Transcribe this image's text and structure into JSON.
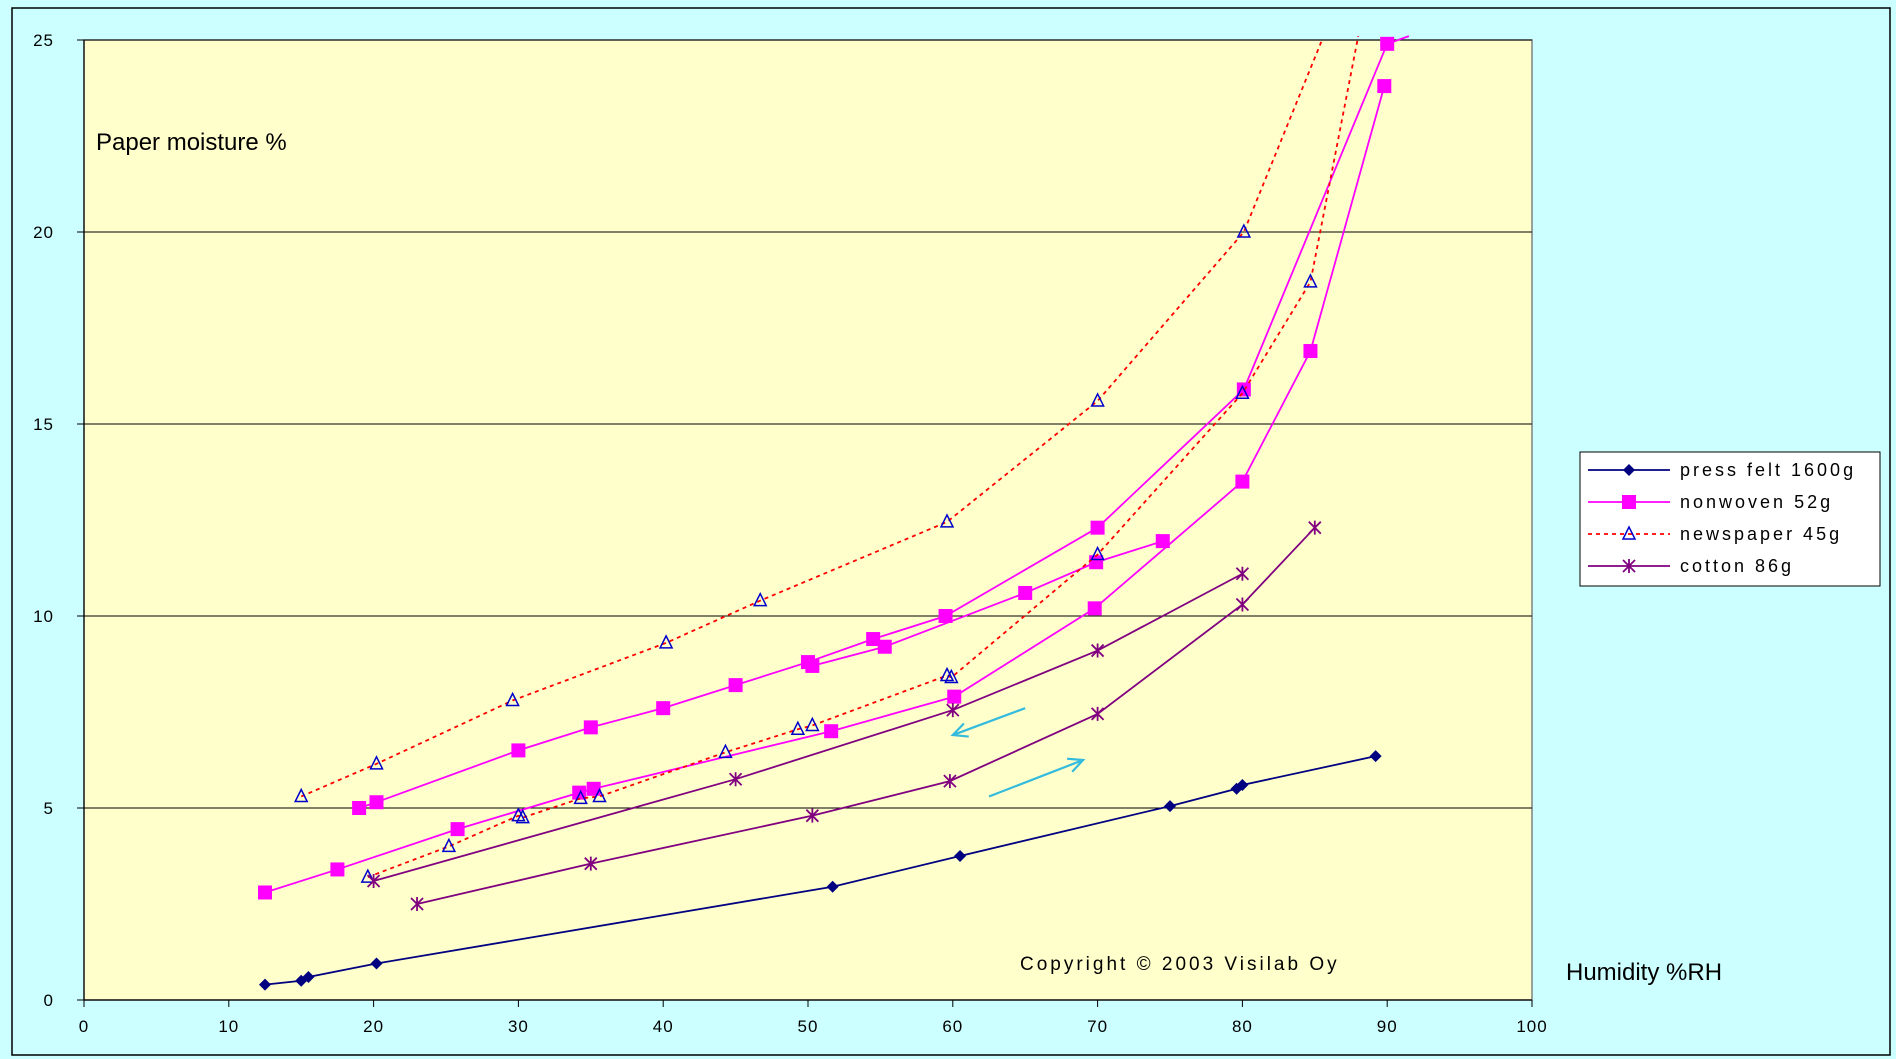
{
  "chart_data": {
    "type": "line",
    "title": "",
    "ylabel": "Paper moisture %",
    "xlabel": "Humidity %RH",
    "xlim": [
      0,
      100
    ],
    "ylim": [
      0,
      25
    ],
    "x_ticks": [
      0,
      10,
      20,
      30,
      40,
      50,
      60,
      70,
      80,
      90,
      100
    ],
    "y_ticks": [
      0,
      5,
      10,
      15,
      20,
      25
    ],
    "grid": "horizontal",
    "legend_position": "right",
    "annotation": "Copyright © 2003 Visilab Oy",
    "colors": {
      "page_background": "#ccffff",
      "plot_background": "#ffffcc",
      "arrow": "#33bbdd"
    },
    "series": [
      {
        "name": "press felt 1600g",
        "color": "#000080",
        "marker": "diamond",
        "dash": "solid",
        "lines": [
          {
            "x": [
              12.5,
              15.0,
              15.5,
              20.2,
              51.7,
              60.5,
              75.0,
              79.6,
              80.0,
              89.2
            ],
            "y": [
              0.4,
              0.5,
              0.6,
              0.95,
              2.95,
              3.75,
              5.05,
              5.5,
              5.6,
              6.35
            ]
          }
        ]
      },
      {
        "name": "nonwoven 52g",
        "color": "#ff00ff",
        "marker": "square",
        "dash": "solid",
        "lines": [
          {
            "x": [
              12.5,
              17.5,
              25.8,
              34.2,
              35.2,
              51.6,
              60.1,
              69.8,
              80.0,
              84.7,
              89.8
            ],
            "y": [
              2.8,
              3.4,
              4.45,
              5.4,
              5.5,
              7.0,
              7.9,
              10.2,
              13.5,
              16.9,
              23.8
            ]
          },
          {
            "x": [
              19.0,
              20.2,
              30.0,
              35.0,
              40.0,
              45.0,
              50.0,
              54.5,
              59.5,
              70.0,
              80.1,
              90.0,
              91.5
            ],
            "y": [
              5.0,
              5.15,
              6.5,
              7.1,
              7.6,
              8.2,
              8.8,
              9.4,
              10.0,
              12.3,
              15.9,
              24.9,
              25.1
            ]
          },
          {
            "x": [
              50.3,
              55.3,
              65.0,
              69.9,
              74.5
            ],
            "y": [
              8.7,
              9.2,
              10.6,
              11.4,
              11.95
            ]
          }
        ]
      },
      {
        "name": "newspaper 45g",
        "color": "#ff0000",
        "marker": "triangle",
        "dash": "dashed",
        "lines": [
          {
            "x": [
              15.0,
              20.2,
              29.6,
              40.2,
              46.7,
              59.6,
              70.0,
              80.1,
              85.5
            ],
            "y": [
              5.3,
              6.15,
              7.8,
              9.3,
              10.4,
              12.45,
              15.6,
              20.0,
              25.0
            ]
          },
          {
            "x": [
              19.6,
              25.2,
              30.0,
              30.3,
              34.3,
              35.6,
              44.3,
              49.3,
              50.3,
              59.6,
              59.9,
              70.0,
              80.0,
              84.7,
              88.0
            ],
            "y": [
              3.2,
              4.0,
              4.8,
              4.75,
              5.25,
              5.3,
              6.45,
              7.05,
              7.15,
              8.45,
              8.4,
              11.6,
              15.8,
              18.7,
              25.1
            ]
          }
        ]
      },
      {
        "name": "cotton 86g",
        "color": "#800080",
        "marker": "star",
        "dash": "solid",
        "lines": [
          {
            "x": [
              23.0,
              35.0,
              50.3,
              59.8,
              70.0,
              80.0,
              85.0
            ],
            "y": [
              2.5,
              3.55,
              4.8,
              5.7,
              7.45,
              10.3,
              12.3
            ]
          },
          {
            "x": [
              20.0,
              45.0,
              60.0,
              70.0,
              80.0
            ],
            "y": [
              3.1,
              5.75,
              7.55,
              9.1,
              11.1
            ]
          }
        ]
      }
    ],
    "arrows": [
      {
        "from": [
          65.0,
          7.6
        ],
        "to": [
          60.0,
          6.9
        ]
      },
      {
        "from": [
          62.5,
          5.3
        ],
        "to": [
          69.0,
          6.25
        ]
      }
    ]
  }
}
